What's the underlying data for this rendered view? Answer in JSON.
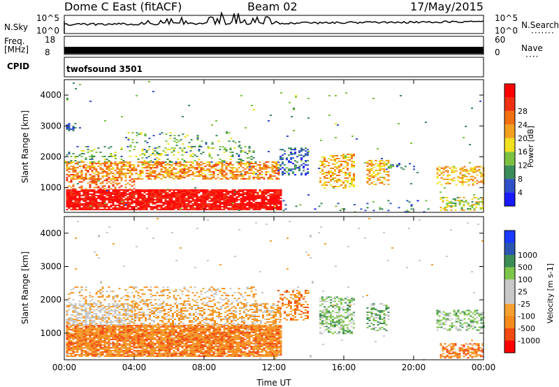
{
  "header": {
    "radar": "Dome C East (fitACF)",
    "beam": "Beam 02",
    "date": "17/May/2015"
  },
  "strip": {
    "nsky_label": "N.Sky",
    "nsky_ticks": [
      "10^5",
      "10^0"
    ],
    "nsearch_label": "N.Search",
    "freq_label_1": "Freq.",
    "freq_label_2": "[MHz]",
    "freq_ticks": [
      "18",
      "8"
    ],
    "nave_label": "Nave",
    "nave_ticks": [
      "60",
      "0"
    ],
    "cpid_label": "CPID",
    "cpid_value": "twofsound 3501"
  },
  "colors": {
    "power": [
      "#1a1aff",
      "#3050c8",
      "#3a8c5a",
      "#7cc240",
      "#f0e020",
      "#f2a020",
      "#f07010",
      "#f03010",
      "#ff0000"
    ],
    "velocity": [
      "#ff0000",
      "#f24a10",
      "#f58a1a",
      "#f5a030",
      "#c8c8c8",
      "#c8c8c8",
      "#7dc64a",
      "#3c8c55",
      "#2a55b0",
      "#1a3aff"
    ]
  },
  "chart_data": [
    {
      "type": "heatmap",
      "name": "power",
      "xlabel": "",
      "ylabel": "Slant Range [km]",
      "xlim": [
        0,
        24
      ],
      "ylim": [
        200,
        4500
      ],
      "y_ticks": [
        1000,
        2000,
        3000,
        4000
      ],
      "colorbar_label": "Power [dB]",
      "colorbar_ticks": [
        "4",
        "8",
        "12",
        "16",
        "20",
        "24",
        "28"
      ],
      "colorbar_range": [
        0,
        32
      ],
      "regions": [
        {
          "t0": 0.1,
          "t1": 12.4,
          "r0": 300,
          "r1": 950,
          "v": 30,
          "density": 0.88
        },
        {
          "t0": 0.1,
          "t1": 4.0,
          "r0": 950,
          "r1": 1300,
          "v": 24,
          "density": 0.35
        },
        {
          "t0": 0.1,
          "t1": 12.3,
          "r0": 1300,
          "r1": 1850,
          "v": 21,
          "density": 0.58
        },
        {
          "t0": 0.1,
          "t1": 11.0,
          "r0": 1850,
          "r1": 2350,
          "v": 11,
          "density": 0.18
        },
        {
          "t0": 3.5,
          "t1": 10.0,
          "r0": 2300,
          "r1": 2800,
          "v": 11,
          "density": 0.12
        },
        {
          "t0": 0.1,
          "t1": 0.7,
          "r0": 2850,
          "r1": 3100,
          "v": 5,
          "density": 0.6
        },
        {
          "t0": 12.2,
          "t1": 14.0,
          "r0": 1400,
          "r1": 2300,
          "v": 6,
          "density": 0.35
        },
        {
          "t0": 14.6,
          "t1": 16.6,
          "r0": 1000,
          "r1": 2100,
          "v": 19,
          "density": 0.45
        },
        {
          "t0": 17.3,
          "t1": 18.6,
          "r0": 1100,
          "r1": 1900,
          "v": 19,
          "density": 0.45
        },
        {
          "t0": 18.4,
          "t1": 20.0,
          "r0": 1600,
          "r1": 1800,
          "v": 8,
          "density": 0.25
        },
        {
          "t0": 21.3,
          "t1": 24.0,
          "r0": 1100,
          "r1": 1700,
          "v": 19,
          "density": 0.45
        },
        {
          "t0": 21.5,
          "t1": 24.0,
          "r0": 250,
          "r1": 700,
          "v": 15,
          "density": 0.45
        },
        {
          "t0": 12.5,
          "t1": 21.0,
          "r0": 200,
          "r1": 600,
          "v": 8,
          "density": 0.07
        },
        {
          "t0": 0.0,
          "t1": 24.0,
          "r0": 200,
          "r1": 4500,
          "v": 10,
          "density": 0.006
        }
      ]
    },
    {
      "type": "heatmap",
      "name": "velocity",
      "xlabel": "Time UT",
      "ylabel": "Slant Range [km]",
      "x_ticks": [
        "00:00",
        "04:00",
        "08:00",
        "12:00",
        "16:00",
        "20:00",
        "00:00"
      ],
      "xlim": [
        0,
        24
      ],
      "ylim": [
        200,
        4500
      ],
      "y_ticks": [
        1000,
        2000,
        3000,
        4000
      ],
      "colorbar_label": "Velocity [m s-1]",
      "colorbar_ticks": [
        "-1000",
        "-500",
        "-100",
        "-25",
        "25",
        "100",
        "500",
        "1000"
      ],
      "regions": [
        {
          "t0": 0.1,
          "t1": 12.4,
          "r0": 300,
          "r1": 1250,
          "v": 2,
          "density": 0.88
        },
        {
          "t0": 0.1,
          "t1": 4.0,
          "r0": 1250,
          "r1": 1900,
          "v": 4,
          "density": 0.6
        },
        {
          "t0": 4.0,
          "t1": 12.3,
          "r0": 1250,
          "r1": 1900,
          "v": 3,
          "density": 0.45
        },
        {
          "t0": 0.1,
          "t1": 11.0,
          "r0": 1900,
          "r1": 2400,
          "v": 3,
          "density": 0.2
        },
        {
          "t0": 12.2,
          "t1": 14.0,
          "r0": 1400,
          "r1": 2300,
          "v": 2,
          "density": 0.35
        },
        {
          "t0": 14.6,
          "t1": 16.6,
          "r0": 1000,
          "r1": 2100,
          "v": 6,
          "density": 0.45
        },
        {
          "t0": 17.3,
          "t1": 18.6,
          "r0": 1100,
          "r1": 1900,
          "v": 6,
          "density": 0.45
        },
        {
          "t0": 21.3,
          "t1": 24.0,
          "r0": 1100,
          "r1": 1700,
          "v": 6,
          "density": 0.45
        },
        {
          "t0": 21.5,
          "t1": 24.0,
          "r0": 250,
          "r1": 700,
          "v": 2,
          "density": 0.5
        },
        {
          "t0": 0.0,
          "t1": 24.0,
          "r0": 200,
          "r1": 4500,
          "v": 4,
          "density": 0.006
        }
      ]
    }
  ]
}
